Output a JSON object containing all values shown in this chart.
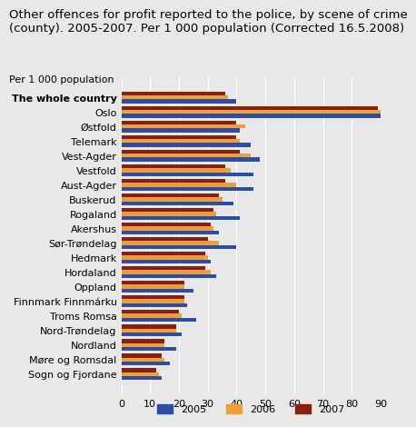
{
  "title": "Other offences for profit reported to the police, by scene of crime\n(county). 2005-2007. Per 1 000 population (Corrected 16.5.2008)",
  "ylabel_text": "Per 1 000 population",
  "categories": [
    "The whole country",
    "Oslo",
    "Østfold",
    "Telemark",
    "Vest-Agder",
    "Vestfold",
    "Aust-Agder",
    "Buskerud",
    "Rogaland",
    "Akershus",
    "Sør-Trøndelag",
    "Hedmark",
    "Hordaland",
    "Oppland",
    "Finnmark Finnmárku",
    "Troms Romsa",
    "Nord-Trøndelag",
    "Nordland",
    "Møre og Romsdal",
    "Sogn og Fjordane"
  ],
  "values_2005": [
    40,
    91,
    41,
    45,
    48,
    46,
    46,
    39,
    41,
    34,
    40,
    31,
    33,
    25,
    23,
    26,
    21,
    19,
    17,
    14
  ],
  "values_2006": [
    37,
    90,
    43,
    41,
    45,
    38,
    40,
    35,
    33,
    32,
    34,
    30,
    31,
    22,
    22,
    21,
    19,
    15,
    15,
    13
  ],
  "values_2007": [
    36,
    89,
    40,
    40,
    41,
    36,
    36,
    34,
    32,
    31,
    30,
    29,
    29,
    22,
    22,
    20,
    19,
    15,
    14,
    12
  ],
  "color_2005": "#2b4ea8",
  "color_2006": "#f0a030",
  "color_2007": "#8b2010",
  "xlim": [
    0,
    90
  ],
  "xticks": [
    0,
    10,
    20,
    30,
    40,
    50,
    60,
    70,
    80,
    90
  ],
  "plot_bg": "#e8e8e8",
  "fig_bg": "#e8e8e8",
  "grid_color": "#ffffff",
  "title_fontsize": 9.5,
  "label_fontsize": 8,
  "tick_fontsize": 8
}
